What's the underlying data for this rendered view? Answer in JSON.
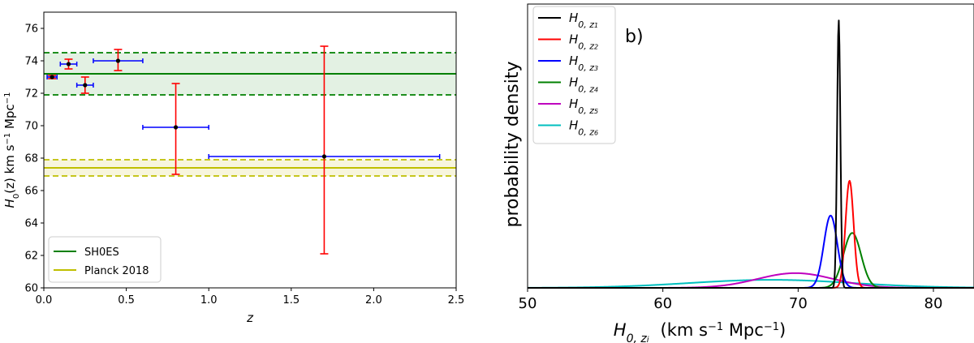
{
  "chart_data": [
    {
      "panel": "left",
      "type": "scatter",
      "xlabel": "z",
      "ylabel_main": "H",
      "ylabel_sub": "0",
      "ylabel_rest": "(z)  km s",
      "ylabel_sup1": "−1",
      "ylabel_mpc": " Mpc",
      "ylabel_sup2": "−1",
      "xlim": [
        0,
        2.5
      ],
      "ylim": [
        60,
        77
      ],
      "xticks": [
        0.0,
        0.5,
        1.0,
        1.5,
        2.0,
        2.5
      ],
      "xtick_labels": [
        "0.0",
        "0.5",
        "1.0",
        "1.5",
        "2.0",
        "2.5"
      ],
      "yticks": [
        60,
        62,
        64,
        66,
        68,
        70,
        72,
        74,
        76
      ],
      "ytick_labels": [
        "60",
        "62",
        "64",
        "66",
        "68",
        "70",
        "72",
        "74",
        "76"
      ],
      "points": [
        {
          "x": 0.05,
          "y": 73.0,
          "xlo": 0.02,
          "xhi": 0.08,
          "ylo": 72.9,
          "yhi": 73.1
        },
        {
          "x": 0.15,
          "y": 73.8,
          "xlo": 0.1,
          "xhi": 0.2,
          "ylo": 73.5,
          "yhi": 74.1
        },
        {
          "x": 0.25,
          "y": 72.5,
          "xlo": 0.2,
          "xhi": 0.3,
          "ylo": 72.0,
          "yhi": 73.0
        },
        {
          "x": 0.45,
          "y": 74.0,
          "xlo": 0.3,
          "xhi": 0.6,
          "ylo": 73.4,
          "yhi": 74.7
        },
        {
          "x": 0.8,
          "y": 69.9,
          "xlo": 0.6,
          "xhi": 1.0,
          "ylo": 67.0,
          "yhi": 72.6
        },
        {
          "x": 1.7,
          "y": 68.1,
          "xlo": 1.0,
          "xhi": 2.4,
          "ylo": 62.1,
          "yhi": 74.9
        }
      ],
      "bands": [
        {
          "name": "SH0ES",
          "center": 73.2,
          "lo": 71.9,
          "hi": 74.5,
          "color": "#008000",
          "fill": "#e3f1e3"
        },
        {
          "name": "Planck 2018",
          "center": 67.4,
          "lo": 66.9,
          "hi": 67.9,
          "color": "#bfbf00",
          "fill": "#f7f5dd"
        }
      ],
      "colors": {
        "xerr": "#0000ff",
        "yerr": "#ff0000",
        "point": "#000000"
      },
      "legend": [
        "SH0ES",
        "Planck 2018"
      ],
      "legend_position": "lower-left"
    },
    {
      "panel": "right",
      "type": "line",
      "panel_label": "b)",
      "xlabel_main": "H",
      "xlabel_sub": "0, z",
      "xlabel_subsub": "i",
      "xlabel_units": "(km s",
      "xlabel_sup1": "−1",
      "xlabel_mpc": " Mpc",
      "xlabel_sup2": "−1",
      "xlabel_close": ")",
      "ylabel": "probability density",
      "xlim": [
        50,
        83
      ],
      "ylim": [
        0,
        1.06
      ],
      "xticks": [
        50,
        60,
        70,
        80
      ],
      "xtick_labels": [
        "50",
        "60",
        "70",
        "80"
      ],
      "legend_position": "top-left",
      "series": [
        {
          "name": "H0,z1",
          "sub": "1",
          "mean": 73.0,
          "sigma": 0.12,
          "peak": 1.0,
          "color": "#000000"
        },
        {
          "name": "H0,z2",
          "sub": "2",
          "mean": 73.8,
          "sigma": 0.3,
          "peak": 0.4,
          "color": "#ff0000"
        },
        {
          "name": "H0,z3",
          "sub": "3",
          "mean": 72.4,
          "sigma": 0.5,
          "peak": 0.27,
          "color": "#0000ff"
        },
        {
          "name": "H0,z4",
          "sub": "4",
          "mean": 74.0,
          "sigma": 0.65,
          "peak": 0.205,
          "color": "#008000"
        },
        {
          "name": "H0,z5",
          "sub": "5",
          "mean": 69.8,
          "sigma": 2.8,
          "peak": 0.055,
          "color": "#bf00bf"
        },
        {
          "name": "H0,z6",
          "sub": "6",
          "mean": 68.0,
          "sigma": 6.0,
          "peak": 0.03,
          "color": "#00bfbf"
        }
      ]
    }
  ]
}
